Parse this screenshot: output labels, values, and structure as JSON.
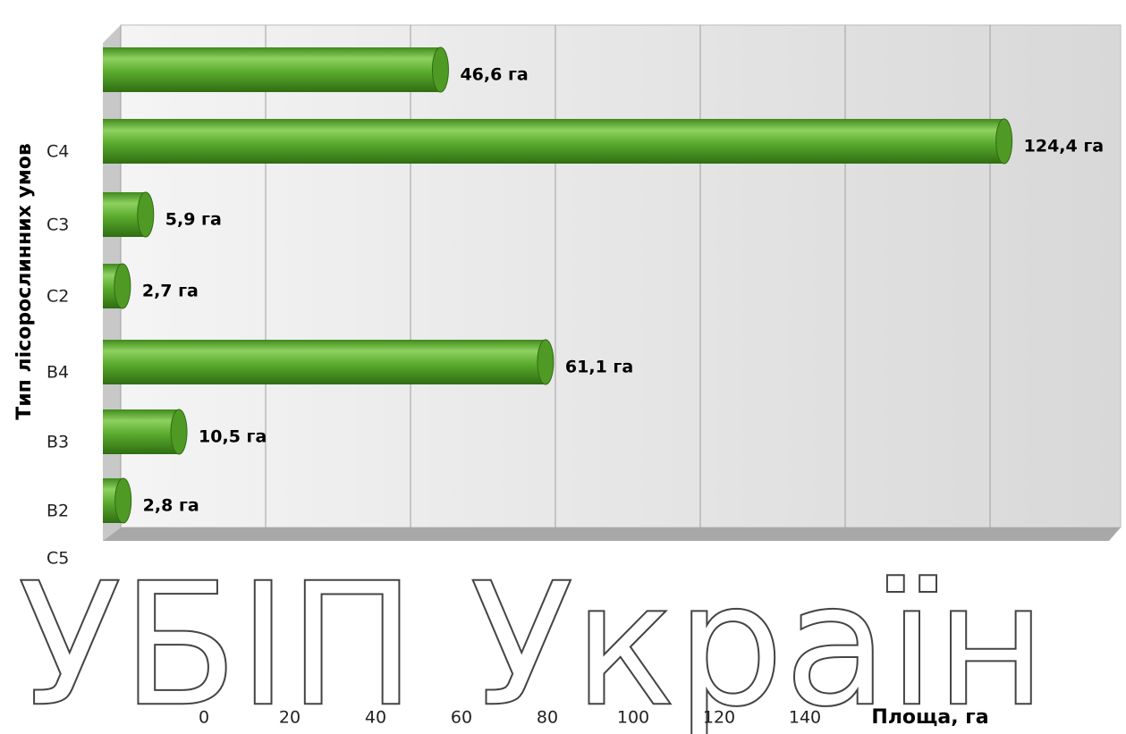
{
  "chart_data": {
    "type": "barh",
    "categories": [
      null,
      "C4",
      "C3",
      "C2",
      "B4",
      "B3",
      "B2"
    ],
    "values": [
      46.6,
      124.4,
      5.9,
      2.7,
      61.1,
      10.5,
      2.8
    ],
    "value_labels": [
      "46,6 га",
      "124,4 га",
      "5,9 га",
      "2,7 га",
      "61,1 га",
      "10,5 га",
      "2,8 га"
    ],
    "color": "#5aab2e",
    "xlim": [
      0,
      140
    ],
    "xticks": [
      0,
      20,
      40,
      60,
      80,
      100,
      120,
      140
    ],
    "grid": true,
    "xlabel": "Площа, га",
    "ylabel": "Тип лісорослинних умов",
    "annotations": [
      "C5"
    ],
    "watermark": "УБІП Україн"
  }
}
